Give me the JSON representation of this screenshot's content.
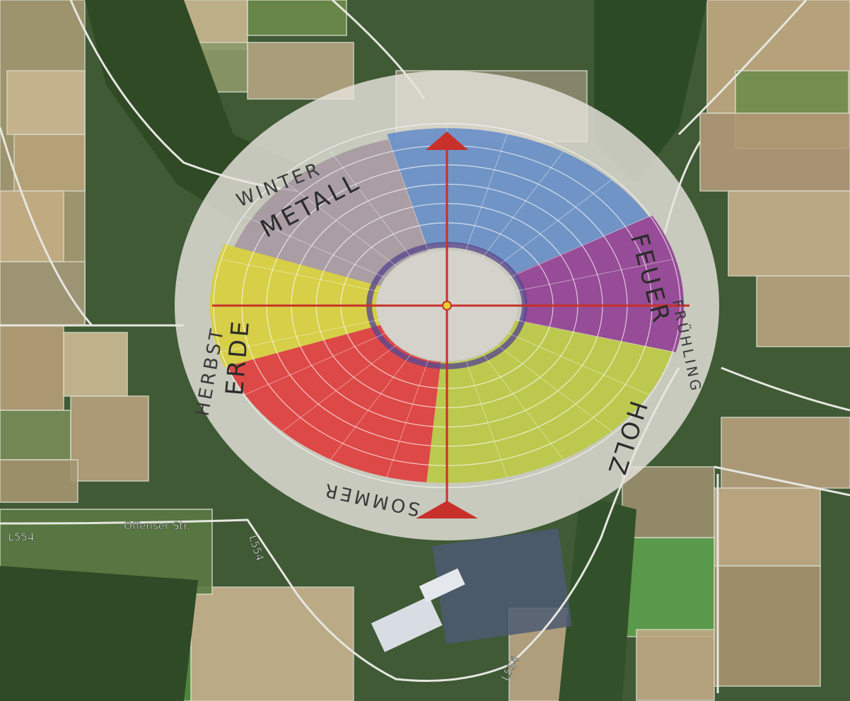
{
  "map": {
    "roads": [
      "Offenser Str.",
      "L554",
      "L554",
      "L554"
    ]
  },
  "diagram": {
    "seasons": [
      "WINTER",
      "HERBST",
      "SOMMER",
      "FRÜHLING"
    ],
    "elements": [
      "METALL",
      "ERDE",
      "HOLZ",
      "FEUER"
    ]
  }
}
